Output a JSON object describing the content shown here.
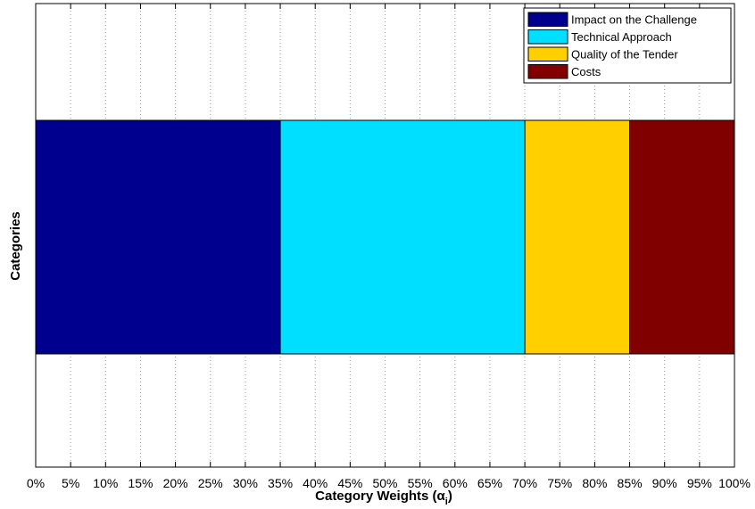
{
  "chart_data": {
    "type": "bar",
    "orientation": "horizontal",
    "stacked": true,
    "categories": [
      ""
    ],
    "series": [
      {
        "name": "Impact on the Challenge",
        "values": [
          35
        ],
        "color": "#00008f"
      },
      {
        "name": "Technical Approach",
        "values": [
          35
        ],
        "color": "#00dfff"
      },
      {
        "name": "Quality of the Tender",
        "values": [
          15
        ],
        "color": "#ffcf00"
      },
      {
        "name": "Costs",
        "values": [
          15
        ],
        "color": "#800000"
      }
    ],
    "title": "",
    "xlabel_main": "Category Weights (α",
    "xlabel_subscript": "i",
    "xlabel_close": ")",
    "ylabel": "Categories",
    "xlim": [
      0,
      100
    ],
    "xticks": [
      "0%",
      "5%",
      "10%",
      "15%",
      "20%",
      "25%",
      "30%",
      "35%",
      "40%",
      "45%",
      "50%",
      "55%",
      "60%",
      "65%",
      "70%",
      "75%",
      "80%",
      "85%",
      "90%",
      "95%",
      "100%"
    ],
    "xtick_values": [
      0,
      5,
      10,
      15,
      20,
      25,
      30,
      35,
      40,
      45,
      50,
      55,
      60,
      65,
      70,
      75,
      80,
      85,
      90,
      95,
      100
    ],
    "grid": "x-dotted",
    "legend_position": "top-right"
  }
}
